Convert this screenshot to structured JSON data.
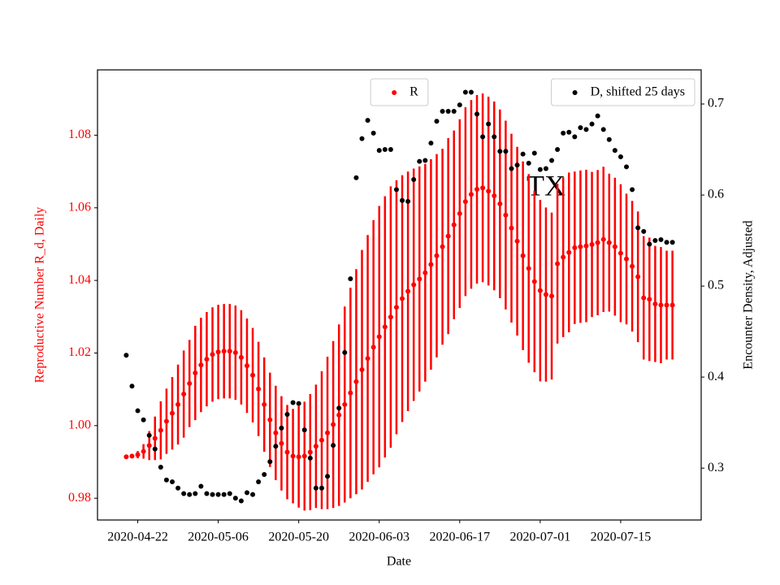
{
  "chart_data": {
    "type": "scatter",
    "annotation": "TX",
    "x_label": "Date",
    "y_label": "Reproductive Number R_d, Daily",
    "y2_label": "Encounter Density, Adjusted",
    "xlim": [
      "2020-04-15",
      "2020-07-29"
    ],
    "xticks": [
      "2020-04-22",
      "2020-05-06",
      "2020-05-20",
      "2020-06-03",
      "2020-06-17",
      "2020-07-01",
      "2020-07-15"
    ],
    "ylim": [
      0.974,
      1.098
    ],
    "yticks": [
      0.98,
      {
        "value": 1,
        "label": "1.00"
      },
      1.02,
      1.04,
      1.06,
      1.08
    ],
    "y2lim": [
      0.243,
      0.7375
    ],
    "y2ticks": [
      0.3,
      0.4,
      0.5,
      0.6,
      0.7
    ],
    "grid": false,
    "x": [
      "2020-04-20",
      "2020-04-21",
      "2020-04-22",
      "2020-04-23",
      "2020-04-24",
      "2020-04-25",
      "2020-04-26",
      "2020-04-27",
      "2020-04-28",
      "2020-04-29",
      "2020-04-30",
      "2020-05-01",
      "2020-05-02",
      "2020-05-03",
      "2020-05-04",
      "2020-05-05",
      "2020-05-06",
      "2020-05-07",
      "2020-05-08",
      "2020-05-09",
      "2020-05-10",
      "2020-05-11",
      "2020-05-12",
      "2020-05-13",
      "2020-05-14",
      "2020-05-15",
      "2020-05-16",
      "2020-05-17",
      "2020-05-18",
      "2020-05-19",
      "2020-05-20",
      "2020-05-21",
      "2020-05-22",
      "2020-05-23",
      "2020-05-24",
      "2020-05-25",
      "2020-05-26",
      "2020-05-27",
      "2020-05-28",
      "2020-05-29",
      "2020-05-30",
      "2020-05-31",
      "2020-06-01",
      "2020-06-02",
      "2020-06-03",
      "2020-06-04",
      "2020-06-05",
      "2020-06-06",
      "2020-06-07",
      "2020-06-08",
      "2020-06-09",
      "2020-06-10",
      "2020-06-11",
      "2020-06-12",
      "2020-06-13",
      "2020-06-14",
      "2020-06-15",
      "2020-06-16",
      "2020-06-17",
      "2020-06-18",
      "2020-06-19",
      "2020-06-20",
      "2020-06-21",
      "2020-06-22",
      "2020-06-23",
      "2020-06-24",
      "2020-06-25",
      "2020-06-26",
      "2020-06-27",
      "2020-06-28",
      "2020-06-29",
      "2020-06-30",
      "2020-07-01",
      "2020-07-02",
      "2020-07-03",
      "2020-07-04",
      "2020-07-05",
      "2020-07-06",
      "2020-07-07",
      "2020-07-08",
      "2020-07-09",
      "2020-07-10",
      "2020-07-11",
      "2020-07-12",
      "2020-07-13",
      "2020-07-14",
      "2020-07-15",
      "2020-07-16",
      "2020-07-17",
      "2020-07-18",
      "2020-07-19",
      "2020-07-20",
      "2020-07-21",
      "2020-07-22",
      "2020-07-23",
      "2020-07-24"
    ],
    "series": [
      {
        "name": "R",
        "color": "#ff0000",
        "axis": "y",
        "legend_loc": "upper center",
        "values": [
          0.9914,
          0.9916,
          0.992,
          0.9929,
          0.9945,
          0.9965,
          0.9987,
          1.0012,
          1.0034,
          1.0058,
          1.0087,
          1.0116,
          1.0145,
          1.0167,
          1.0183,
          1.0196,
          1.0203,
          1.0205,
          1.0205,
          1.0201,
          1.0188,
          1.0165,
          1.0139,
          1.0101,
          1.0058,
          1.0016,
          0.998,
          0.9951,
          0.9927,
          0.9916,
          0.9914,
          0.9916,
          0.9927,
          0.9943,
          0.996,
          0.998,
          1.0003,
          1.0029,
          1.0058,
          1.009,
          1.0121,
          1.0154,
          1.0185,
          1.0216,
          1.0245,
          1.0272,
          1.0299,
          1.0326,
          1.035,
          1.037,
          1.0388,
          1.0404,
          1.0421,
          1.0444,
          1.0468,
          1.0493,
          1.0522,
          1.0553,
          1.0584,
          1.0617,
          1.0637,
          1.0651,
          1.0655,
          1.0646,
          1.0633,
          1.0611,
          1.058,
          1.0544,
          1.0508,
          1.0468,
          1.0433,
          1.0397,
          1.0372,
          1.0361,
          1.0357,
          1.0446,
          1.0464,
          1.0477,
          1.049,
          1.0493,
          1.0495,
          1.0499,
          1.0504,
          1.0513,
          1.0504,
          1.0493,
          1.0475,
          1.0459,
          1.0439,
          1.041,
          1.0352,
          1.0348,
          1.0335,
          1.0332,
          1.0332,
          1.0332
        ],
        "errors": [
          0,
          0,
          0.001,
          0.002,
          0.004,
          0.006,
          0.008,
          0.009,
          0.01,
          0.011,
          0.012,
          0.012,
          0.013,
          0.013,
          0.013,
          0.013,
          0.013,
          0.013,
          0.013,
          0.013,
          0.013,
          0.013,
          0.013,
          0.013,
          0.013,
          0.013,
          0.013,
          0.013,
          0.013,
          0.013,
          0.014,
          0.015,
          0.016,
          0.017,
          0.019,
          0.021,
          0.023,
          0.025,
          0.027,
          0.029,
          0.031,
          0.033,
          0.034,
          0.035,
          0.036,
          0.036,
          0.036,
          0.035,
          0.034,
          0.033,
          0.032,
          0.031,
          0.03,
          0.029,
          0.028,
          0.027,
          0.027,
          0.026,
          0.026,
          0.026,
          0.026,
          0.026,
          0.026,
          0.026,
          0.026,
          0.026,
          0.026,
          0.026,
          0.026,
          0.026,
          0.026,
          0.025,
          0.025,
          0.024,
          0.023,
          0.022,
          0.022,
          0.022,
          0.021,
          0.021,
          0.021,
          0.02,
          0.02,
          0.02,
          0.019,
          0.019,
          0.019,
          0.018,
          0.018,
          0.018,
          0.017,
          0.017,
          0.016,
          0.016,
          0.015,
          0.015
        ]
      },
      {
        "name": "D, shifted 25 days",
        "color": "#000000",
        "axis": "y2",
        "legend_loc": "upper right",
        "values": [
          0.424,
          0.39,
          0.363,
          0.353,
          0.336,
          0.321,
          0.301,
          0.287,
          0.285,
          0.278,
          0.272,
          0.271,
          0.272,
          0.28,
          0.272,
          0.271,
          0.271,
          0.271,
          0.272,
          0.267,
          0.264,
          0.273,
          0.271,
          0.285,
          0.293,
          0.307,
          0.324,
          0.344,
          0.359,
          0.372,
          0.371,
          0.342,
          0.311,
          0.278,
          0.278,
          0.291,
          0.325,
          0.366,
          0.427,
          0.508,
          0.619,
          0.662,
          0.682,
          0.668,
          0.649,
          0.65,
          0.65,
          0.606,
          0.594,
          0.593,
          0.617,
          0.637,
          0.638,
          0.657,
          0.681,
          0.692,
          0.692,
          0.692,
          0.699,
          0.713,
          0.713,
          0.689,
          0.664,
          0.678,
          0.664,
          0.648,
          0.648,
          0.629,
          0.633,
          0.645,
          0.635,
          0.646,
          0.628,
          0.629,
          0.638,
          0.65,
          0.668,
          0.669,
          0.664,
          0.674,
          0.672,
          0.678,
          0.687,
          0.672,
          0.661,
          0.649,
          0.642,
          0.631,
          0.606,
          0.564,
          0.56,
          0.546,
          0.55,
          0.551,
          0.548,
          0.548
        ]
      }
    ]
  }
}
